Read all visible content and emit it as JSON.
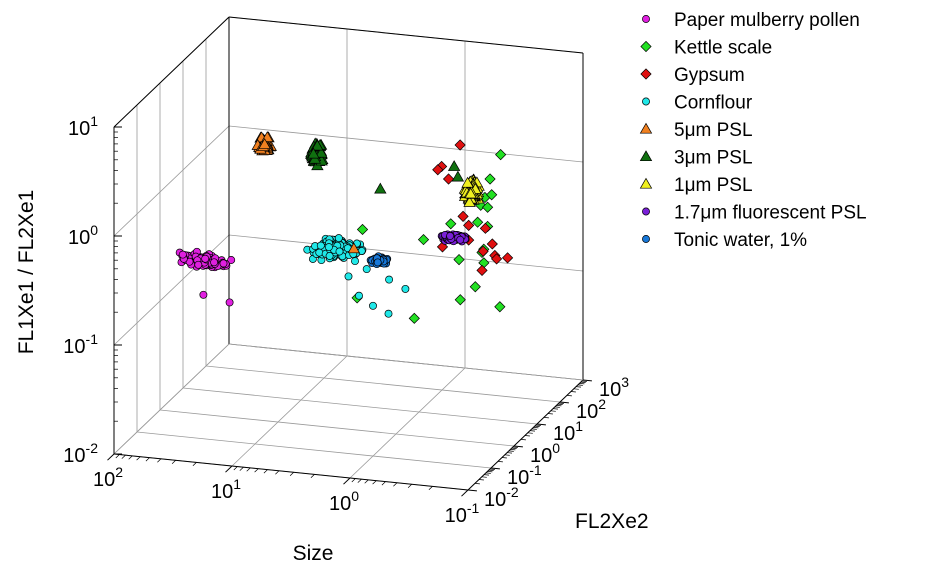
{
  "chart_data": {
    "type": "scatter",
    "title": "",
    "xlabel": "Size",
    "ylabel": "FL2Xe2",
    "zlabel": "FL1Xe1 / FL2Xe1",
    "x_scale": "log",
    "y_scale": "log",
    "z_scale": "log",
    "xlim": [
      0.1,
      100
    ],
    "ylim": [
      0.01,
      1000
    ],
    "zlim": [
      0.01,
      10
    ],
    "x_ticks": [
      {
        "value": 100,
        "base": "10",
        "exp": "2"
      },
      {
        "value": 10,
        "base": "10",
        "exp": "1"
      },
      {
        "value": 1,
        "base": "10",
        "exp": "0"
      },
      {
        "value": 0.1,
        "base": "10",
        "exp": "-1"
      }
    ],
    "y_ticks": [
      {
        "value": 0.01,
        "base": "10",
        "exp": "-2"
      },
      {
        "value": 0.1,
        "base": "10",
        "exp": "-1"
      },
      {
        "value": 1,
        "base": "10",
        "exp": "0"
      },
      {
        "value": 10,
        "base": "10",
        "exp": "1"
      },
      {
        "value": 100,
        "base": "10",
        "exp": "2"
      },
      {
        "value": 1000,
        "base": "10",
        "exp": "3"
      }
    ],
    "z_ticks": [
      {
        "value": 10,
        "base": "10",
        "exp": "1"
      },
      {
        "value": 1,
        "base": "10",
        "exp": "0"
      },
      {
        "value": 0.1,
        "base": "10",
        "exp": "-1"
      },
      {
        "value": 0.01,
        "base": "10",
        "exp": "-2"
      }
    ],
    "legend_position": "right",
    "series": [
      {
        "name": "Paper mulberry pollen",
        "marker": "circle",
        "color": "#e020e0",
        "cluster": {
          "x": 20,
          "y": 0.02,
          "z": 0.62,
          "sx": 0.25,
          "sy": 0.03,
          "sz": 0.08,
          "n": 110
        },
        "points": [
          [
            20,
            0.02,
            0.3
          ],
          [
            12,
            0.02,
            0.27
          ]
        ]
      },
      {
        "name": "Kettle scale",
        "marker": "diamond",
        "color": "#22e022",
        "points": [
          [
            0.3,
            10,
            0.9
          ],
          [
            0.33,
            12,
            0.6
          ],
          [
            0.3,
            20,
            0.5
          ],
          [
            0.28,
            8,
            0.35
          ],
          [
            0.35,
            30,
            0.28
          ],
          [
            0.4,
            60,
            0.18
          ],
          [
            0.6,
            40,
            0.2
          ],
          [
            0.5,
            80,
            0.1
          ],
          [
            2.2,
            2,
            0.6
          ],
          [
            0.8,
            5,
            0.45
          ],
          [
            0.45,
            4,
            0.7
          ],
          [
            0.25,
            6,
            1.2
          ],
          [
            0.22,
            15,
            2.5
          ],
          [
            0.25,
            10,
            1.6
          ],
          [
            0.3,
            30,
            0.9
          ],
          [
            1.5,
            50,
            0.05
          ],
          [
            6,
            200,
            0.05
          ],
          [
            0.7,
            100,
            0.07
          ],
          [
            0.35,
            150,
            0.06
          ],
          [
            0.3,
            20,
            0.75
          ]
        ]
      },
      {
        "name": "Gypsum",
        "marker": "diamond",
        "color": "#e01010",
        "points": [
          [
            0.25,
            0.5,
            6
          ],
          [
            0.3,
            0.2,
            4.5
          ],
          [
            0.35,
            0.3,
            3.8
          ],
          [
            0.3,
            0.4,
            3
          ],
          [
            0.22,
            0.6,
            2.5
          ],
          [
            0.25,
            0.8,
            1.8
          ],
          [
            0.28,
            1.2,
            1.1
          ],
          [
            0.2,
            2,
            0.8
          ],
          [
            0.3,
            3,
            0.55
          ],
          [
            0.2,
            4,
            0.5
          ],
          [
            0.18,
            3,
            0.42
          ],
          [
            0.25,
            5,
            0.4
          ],
          [
            0.17,
            8,
            0.33
          ],
          [
            0.22,
            10,
            0.3
          ],
          [
            0.6,
            400,
            0.1
          ],
          [
            0.5,
            3,
            0.45
          ],
          [
            0.3,
            3,
            0.75
          ]
        ]
      },
      {
        "name": "Cornflour",
        "marker": "circle",
        "color": "#20e8e8",
        "cluster": {
          "x": 2.5,
          "y": 0.15,
          "z": 0.65,
          "sx": 0.3,
          "sy": 0.45,
          "sz": 0.09,
          "n": 140
        },
        "points": [
          [
            1.8,
            0.5,
            0.2
          ],
          [
            1.5,
            0.8,
            0.15
          ],
          [
            1.2,
            1.2,
            0.12
          ],
          [
            0.9,
            1.5,
            0.2
          ],
          [
            1,
            0.5,
            0.3
          ],
          [
            2,
            0.3,
            0.33
          ],
          [
            1.4,
            0.3,
            0.4
          ]
        ]
      },
      {
        "name": "5μm PSL",
        "marker": "triangle",
        "color": "#f08020",
        "cluster": {
          "x": 6,
          "y": 0.02,
          "z": 8,
          "sx": 0.07,
          "sy": 0.05,
          "sz": 0.1,
          "n": 55
        },
        "points": [
          [
            1.8,
            0.3,
            0.6
          ]
        ]
      },
      {
        "name": "3μm PSL",
        "marker": "triangle",
        "color": "#107010",
        "cluster": {
          "x": 2.2,
          "y": 0.02,
          "z": 7.5,
          "sx": 0.07,
          "sy": 0.05,
          "sz": 0.13,
          "n": 80
        },
        "points": [
          [
            1.3,
            0.8,
            1.8
          ],
          [
            0.3,
            0.7,
            3.5
          ],
          [
            0.25,
            0.4,
            3.2
          ]
        ]
      },
      {
        "name": "1μm PSL",
        "marker": "triangle",
        "color": "#f0f020",
        "cluster": {
          "x": 0.21,
          "y": 0.7,
          "z": 2.2,
          "sx": 0.07,
          "sy": 0.1,
          "sz": 0.13,
          "n": 110
        }
      },
      {
        "name": "1.7μm fluorescent PSL",
        "marker": "circle",
        "color": "#7a20d8",
        "cluster": {
          "x": 0.7,
          "y": 50,
          "z": 0.3,
          "sx": 0.13,
          "sy": 0.12,
          "sz": 0.04,
          "n": 100
        }
      },
      {
        "name": "Tonic water, 1%",
        "marker": "circle",
        "color": "#1878d8",
        "cluster": {
          "x": 3.5,
          "y": 120,
          "z": 0.13,
          "sx": 0.09,
          "sy": 0.07,
          "sz": 0.035,
          "n": 70
        }
      }
    ]
  }
}
